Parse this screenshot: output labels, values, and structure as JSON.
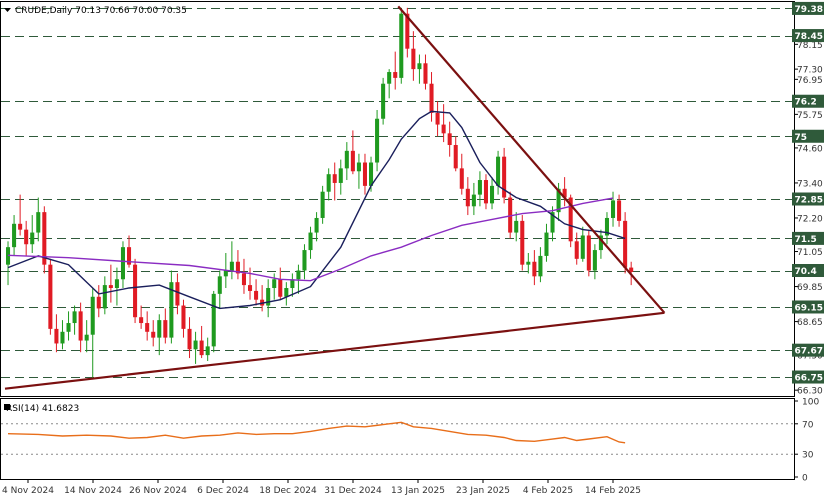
{
  "header": {
    "symbol_line": "CRUDE,Daily  70.13 70.66 70.00 70.35",
    "rsi_label": "RSI(14) 41.6823"
  },
  "chart_data": [
    {
      "type": "candlestick",
      "title": "CRUDE,Daily",
      "ohlc_header": {
        "open": 70.13,
        "high": 70.66,
        "low": 70.0,
        "close": 70.35
      },
      "x_tick_labels": [
        "4 Nov 2024",
        "14 Nov 2024",
        "26 Nov 2024",
        "6 Dec 2024",
        "18 Dec 2024",
        "31 Dec 2024",
        "13 Jan 2025",
        "23 Jan 2025",
        "4 Feb 2025",
        "14 Feb 2025"
      ],
      "y_tick_labels": [
        "79.38",
        "78.45",
        "78.15",
        "77.30",
        "76.95",
        "76.20",
        "75.75",
        "75.00",
        "74.60",
        "73.40",
        "72.85",
        "72.20",
        "71.50",
        "71.05",
        "70.40",
        "69.85",
        "69.15",
        "68.65",
        "67.67",
        "67.50",
        "66.75",
        "66.30"
      ],
      "ylim": [
        66.1,
        79.6
      ],
      "horizontal_levels": [
        79.38,
        78.45,
        76.2,
        75.0,
        72.85,
        71.5,
        70.4,
        69.15,
        67.67,
        66.75
      ],
      "trendlines": [
        {
          "name": "falling",
          "from": {
            "bar": 65,
            "value": 79.45
          },
          "to": {
            "bar": 109,
            "value": 68.95
          }
        },
        {
          "name": "rising",
          "from": {
            "bar": 0,
            "value": 66.35
          },
          "to": {
            "bar": 109,
            "value": 68.95
          }
        }
      ],
      "candles": [
        [
          70.6,
          71.4,
          69.9,
          71.2
        ],
        [
          71.2,
          72.3,
          70.9,
          72.0
        ],
        [
          72.0,
          73.0,
          71.6,
          71.8
        ],
        [
          71.8,
          72.1,
          70.9,
          71.3
        ],
        [
          71.3,
          72.3,
          71.0,
          71.7
        ],
        [
          71.7,
          72.9,
          71.4,
          72.4
        ],
        [
          72.4,
          72.6,
          70.3,
          70.6
        ],
        [
          70.6,
          70.8,
          68.2,
          68.4
        ],
        [
          68.4,
          68.9,
          67.6,
          67.9
        ],
        [
          67.9,
          68.7,
          67.7,
          68.3
        ],
        [
          68.3,
          69.0,
          68.0,
          68.6
        ],
        [
          68.6,
          69.2,
          68.2,
          69.0
        ],
        [
          69.0,
          69.3,
          67.6,
          68.0
        ],
        [
          68.0,
          68.7,
          67.6,
          68.2
        ],
        [
          68.2,
          69.8,
          66.7,
          69.5
        ],
        [
          69.5,
          69.9,
          68.8,
          69.1
        ],
        [
          69.1,
          70.2,
          68.9,
          69.9
        ],
        [
          69.9,
          70.6,
          69.3,
          69.8
        ],
        [
          69.8,
          70.5,
          69.2,
          70.1
        ],
        [
          70.1,
          71.4,
          69.8,
          71.2
        ],
        [
          71.2,
          71.6,
          70.5,
          70.6
        ],
        [
          70.6,
          70.8,
          68.6,
          68.8
        ],
        [
          68.8,
          69.2,
          68.4,
          68.6
        ],
        [
          68.6,
          69.0,
          68.0,
          68.3
        ],
        [
          68.3,
          68.7,
          67.8,
          68.1
        ],
        [
          68.1,
          68.9,
          67.5,
          68.7
        ],
        [
          68.7,
          69.1,
          67.9,
          68.1
        ],
        [
          68.1,
          70.4,
          67.9,
          70.0
        ],
        [
          70.0,
          70.3,
          68.9,
          69.2
        ],
        [
          69.2,
          69.4,
          68.1,
          68.4
        ],
        [
          68.4,
          68.8,
          67.4,
          67.7
        ],
        [
          67.7,
          68.3,
          67.2,
          68.0
        ],
        [
          68.0,
          68.5,
          67.4,
          67.5
        ],
        [
          67.5,
          68.1,
          67.3,
          67.8
        ],
        [
          67.8,
          69.7,
          67.6,
          69.6
        ],
        [
          69.6,
          70.4,
          69.1,
          70.2
        ],
        [
          70.2,
          71.0,
          69.8,
          70.4
        ],
        [
          70.4,
          71.4,
          70.1,
          70.7
        ],
        [
          70.7,
          71.1,
          70.1,
          70.3
        ],
        [
          70.3,
          70.8,
          69.6,
          69.9
        ],
        [
          69.9,
          70.5,
          69.4,
          69.7
        ],
        [
          69.7,
          70.1,
          69.2,
          69.4
        ],
        [
          69.4,
          69.9,
          69.0,
          69.2
        ],
        [
          69.2,
          70.1,
          68.8,
          69.8
        ],
        [
          69.8,
          70.3,
          69.4,
          70.1
        ],
        [
          70.1,
          70.5,
          69.4,
          69.5
        ],
        [
          69.5,
          70.0,
          69.2,
          69.8
        ],
        [
          69.8,
          70.3,
          69.5,
          70.1
        ],
        [
          70.1,
          70.6,
          69.6,
          70.4
        ],
        [
          70.4,
          71.3,
          70.1,
          71.1
        ],
        [
          71.1,
          71.9,
          70.8,
          71.7
        ],
        [
          71.7,
          72.4,
          71.4,
          72.2
        ],
        [
          72.2,
          73.3,
          72.0,
          73.1
        ],
        [
          73.1,
          73.9,
          72.8,
          73.7
        ],
        [
          73.7,
          74.1,
          72.8,
          73.4
        ],
        [
          73.4,
          74.2,
          73.0,
          73.9
        ],
        [
          73.9,
          74.8,
          73.5,
          74.5
        ],
        [
          74.5,
          75.2,
          73.7,
          73.8
        ],
        [
          73.8,
          74.4,
          73.2,
          74.1
        ],
        [
          74.1,
          74.4,
          73.0,
          73.3
        ],
        [
          73.3,
          74.3,
          73.1,
          74.1
        ],
        [
          74.1,
          75.9,
          73.8,
          75.6
        ],
        [
          75.6,
          77.0,
          75.4,
          76.8
        ],
        [
          76.8,
          77.3,
          76.3,
          77.2
        ],
        [
          77.2,
          77.9,
          76.6,
          77.0
        ],
        [
          77.0,
          79.4,
          76.8,
          79.2
        ],
        [
          79.2,
          79.4,
          77.7,
          78.0
        ],
        [
          78.0,
          78.6,
          76.9,
          77.3
        ],
        [
          77.3,
          77.8,
          76.8,
          77.5
        ],
        [
          77.5,
          77.8,
          76.6,
          76.8
        ],
        [
          76.8,
          77.2,
          75.5,
          75.8
        ],
        [
          75.8,
          76.2,
          75.0,
          75.4
        ],
        [
          75.4,
          76.1,
          74.8,
          75.1
        ],
        [
          75.1,
          75.5,
          74.3,
          74.7
        ],
        [
          74.7,
          75.0,
          73.8,
          73.9
        ],
        [
          73.9,
          74.4,
          73.0,
          73.2
        ],
        [
          73.2,
          73.6,
          72.3,
          72.6
        ],
        [
          72.6,
          73.4,
          72.3,
          73.0
        ],
        [
          73.0,
          73.8,
          72.6,
          73.5
        ],
        [
          73.5,
          73.7,
          72.5,
          72.7
        ],
        [
          72.7,
          73.6,
          72.5,
          73.3
        ],
        [
          73.3,
          74.5,
          73.0,
          74.3
        ],
        [
          74.3,
          74.6,
          72.7,
          72.9
        ],
        [
          72.9,
          73.1,
          71.5,
          71.7
        ],
        [
          71.7,
          72.4,
          71.4,
          72.1
        ],
        [
          72.1,
          72.3,
          70.4,
          70.6
        ],
        [
          70.6,
          71.0,
          70.3,
          70.7
        ],
        [
          70.7,
          71.1,
          69.9,
          70.2
        ],
        [
          70.2,
          71.2,
          70.0,
          70.9
        ],
        [
          70.9,
          72.0,
          70.7,
          71.7
        ],
        [
          71.7,
          72.6,
          71.4,
          72.4
        ],
        [
          72.4,
          73.4,
          72.1,
          73.2
        ],
        [
          73.2,
          73.6,
          72.6,
          72.9
        ],
        [
          72.9,
          73.0,
          71.2,
          71.4
        ],
        [
          71.4,
          71.7,
          70.6,
          70.8
        ],
        [
          70.8,
          71.9,
          70.7,
          71.6
        ],
        [
          71.6,
          71.8,
          70.2,
          70.4
        ],
        [
          70.4,
          71.3,
          70.1,
          71.1
        ],
        [
          71.1,
          71.8,
          70.8,
          71.6
        ],
        [
          71.6,
          72.4,
          71.3,
          72.2
        ],
        [
          72.2,
          73.1,
          71.9,
          72.8
        ],
        [
          72.8,
          73.0,
          71.9,
          72.1
        ],
        [
          72.1,
          72.4,
          70.3,
          70.5
        ],
        [
          70.5,
          70.7,
          69.9,
          70.35
        ]
      ],
      "moving_averages": [
        {
          "name": "short",
          "color": "#1a1f5c",
          "points": [
            [
              0,
              70.5
            ],
            [
              5,
              70.9
            ],
            [
              10,
              70.6
            ],
            [
              15,
              69.6
            ],
            [
              20,
              69.8
            ],
            [
              25,
              69.9
            ],
            [
              30,
              69.5
            ],
            [
              35,
              69.1
            ],
            [
              40,
              69.2
            ],
            [
              45,
              69.4
            ],
            [
              50,
              69.85
            ],
            [
              55,
              71.2
            ],
            [
              60,
              73.3
            ],
            [
              63,
              74.2
            ],
            [
              65,
              74.9
            ],
            [
              68,
              75.6
            ],
            [
              70,
              75.85
            ],
            [
              73,
              75.8
            ],
            [
              75,
              75.3
            ],
            [
              78,
              74.1
            ],
            [
              81,
              73.3
            ],
            [
              84,
              72.9
            ],
            [
              88,
              72.6
            ],
            [
              92,
              72.0
            ],
            [
              95,
              71.8
            ],
            [
              99,
              71.7
            ],
            [
              102,
              71.5
            ]
          ]
        },
        {
          "name": "long",
          "color": "#8a2cc2",
          "points": [
            [
              0,
              70.92
            ],
            [
              10,
              70.84
            ],
            [
              20,
              70.7
            ],
            [
              30,
              70.57
            ],
            [
              40,
              70.3
            ],
            [
              45,
              70.1
            ],
            [
              50,
              70.05
            ],
            [
              55,
              70.45
            ],
            [
              60,
              70.9
            ],
            [
              65,
              71.2
            ],
            [
              70,
              71.6
            ],
            [
              75,
              71.95
            ],
            [
              80,
              72.15
            ],
            [
              85,
              72.35
            ],
            [
              90,
              72.45
            ],
            [
              95,
              72.7
            ],
            [
              100,
              72.88
            ]
          ]
        }
      ]
    },
    {
      "type": "line",
      "title": "RSI(14) 41.6823",
      "y_tick_labels": [
        "100",
        "70",
        "30",
        "0"
      ],
      "ylim": [
        0,
        100
      ],
      "guide_levels": [
        70,
        30
      ],
      "line_color": "#e86e1a",
      "points": [
        [
          0,
          57
        ],
        [
          5,
          56
        ],
        [
          9,
          54
        ],
        [
          13,
          55
        ],
        [
          17,
          54
        ],
        [
          20,
          51
        ],
        [
          23,
          52
        ],
        [
          26,
          55
        ],
        [
          29,
          51
        ],
        [
          32,
          54
        ],
        [
          35,
          55
        ],
        [
          38,
          58
        ],
        [
          41,
          56
        ],
        [
          44,
          57
        ],
        [
          47,
          57
        ],
        [
          50,
          60
        ],
        [
          53,
          64
        ],
        [
          56,
          67
        ],
        [
          59,
          66
        ],
        [
          62,
          69
        ],
        [
          65,
          72
        ],
        [
          67,
          66
        ],
        [
          70,
          64
        ],
        [
          73,
          60
        ],
        [
          76,
          56
        ],
        [
          79,
          55
        ],
        [
          82,
          52
        ],
        [
          84,
          48
        ],
        [
          87,
          47
        ],
        [
          89,
          49
        ],
        [
          92,
          52
        ],
        [
          94,
          48
        ],
        [
          96,
          50
        ],
        [
          99,
          53
        ],
        [
          101,
          46
        ],
        [
          102,
          45
        ]
      ]
    }
  ]
}
